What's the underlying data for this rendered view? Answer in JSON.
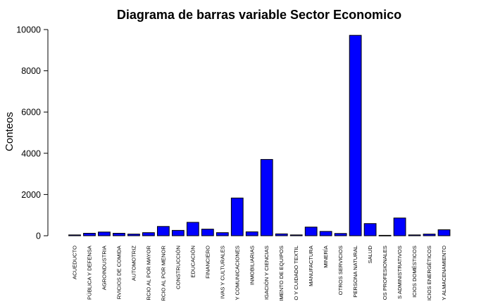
{
  "chart_data": {
    "type": "bar",
    "title": "Diagrama de barras variable Sector Economico",
    "xlabel": "",
    "ylabel": "Conteos",
    "ylim": [
      0,
      10000
    ],
    "yticks": [
      0,
      2000,
      4000,
      6000,
      8000,
      10000
    ],
    "ytick_labels": [
      "0",
      "2000",
      "4000",
      "6000",
      "8000",
      "10000"
    ],
    "bar_color": "#0000ff",
    "bar_edge_color": "#000000",
    "grid": false,
    "categories": [
      "ACUEDUCTO",
      "PÚBLICA Y DEFENSA",
      "AGROINDUSTRIA",
      "RVICIOS DE COMIDA",
      "AUTOMOTRIZ",
      "RCIO AL POR MAYOR",
      "RCIO AL POR MENOR",
      "CONSTRUCCIÓN",
      "EDUCACIÓN",
      "FINANCIERO",
      "IVAS Y CULTURALES",
      "Y COMUNICACIONES",
      "INMOBILIARIAS",
      "IGACIÓN Y CIENCIAS",
      "IMENTO DE EQUIPOS",
      "O Y CUIDADO TEXTIL",
      "MANUFACTURA",
      "MINERÍA",
      "OTROS SERVICIOS",
      "PERSONA NATURAL",
      "SALUD",
      "OS PROFESIONALES",
      "S ADMINISTRATIVOS",
      "ICIOS DOMÉSTICOS",
      "ICIOS ENERGÉTICOS",
      "Y ALMACENAMIENTO"
    ],
    "values": [
      40,
      120,
      180,
      120,
      80,
      150,
      450,
      260,
      650,
      320,
      150,
      1830,
      190,
      3700,
      90,
      40,
      420,
      210,
      110,
      9720,
      590,
      20,
      860,
      40,
      80,
      290
    ]
  }
}
